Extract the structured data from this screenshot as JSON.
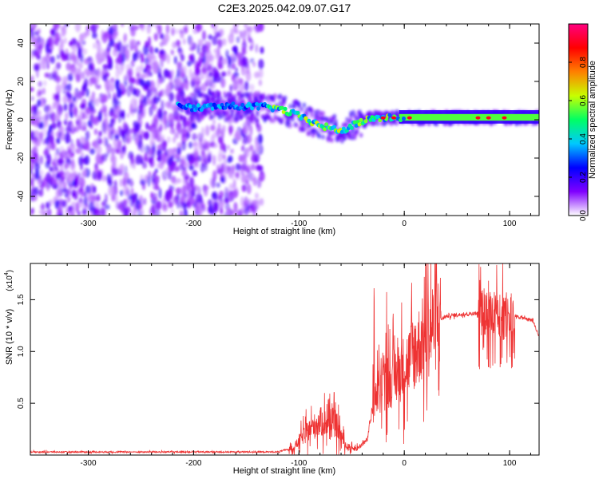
{
  "figure": {
    "title": "C2E3.2025.042.09.07.G17"
  },
  "chart_data": [
    {
      "type": "heatmap",
      "xlabel": "Height of straight line (km)",
      "ylabel": "Frequency (Hz)",
      "xlim": [
        -355,
        128
      ],
      "ylim": [
        -50,
        50
      ],
      "xticks": [
        -300,
        -200,
        -100,
        0,
        100
      ],
      "yticks": [
        -40,
        -20,
        0,
        20,
        40
      ],
      "colorbar": {
        "label": "Normalized spectral amplitude",
        "range": [
          0,
          1
        ],
        "ticks": [
          "0.0",
          "0.2",
          "0.4",
          "0.6",
          "0.8"
        ],
        "colors": [
          "#ffffff",
          "#8000ff",
          "#0000ff",
          "#00c8ff",
          "#00ff64",
          "#c8ff00",
          "#ff8000",
          "#ff0000",
          "#ff0080"
        ]
      },
      "ridge": [
        {
          "x": -215,
          "y": 8
        },
        {
          "x": -200,
          "y": 6
        },
        {
          "x": -180,
          "y": 7
        },
        {
          "x": -140,
          "y": 7
        },
        {
          "x": -120,
          "y": 6
        },
        {
          "x": -100,
          "y": 2
        },
        {
          "x": -80,
          "y": -3
        },
        {
          "x": -60,
          "y": -6
        },
        {
          "x": -45,
          "y": -2
        },
        {
          "x": -30,
          "y": 1
        },
        {
          "x": -10,
          "y": 1
        },
        {
          "x": 20,
          "y": 1
        },
        {
          "x": 60,
          "y": 1
        },
        {
          "x": 128,
          "y": 1
        }
      ],
      "grid": false
    },
    {
      "type": "line",
      "xlabel": "Height of straight line (km)",
      "ylabel": "SNR (10 * v/v)",
      "scale_label": "(x10",
      "scale_exp": "4",
      "xlim": [
        -355,
        128
      ],
      "ylim": [
        0,
        18500
      ],
      "xticks": [
        -300,
        -200,
        -100,
        0,
        100
      ],
      "yticks": [
        "0.5",
        "1.0",
        "1.5"
      ],
      "ytick_values": [
        5000,
        10000,
        15000
      ],
      "color": "#ee3333",
      "envelope": [
        {
          "x": -355,
          "y": 300
        },
        {
          "x": -120,
          "y": 300
        },
        {
          "x": -105,
          "y": 700
        },
        {
          "x": -95,
          "y": 2000
        },
        {
          "x": -80,
          "y": 3200
        },
        {
          "x": -65,
          "y": 3000
        },
        {
          "x": -55,
          "y": 800
        },
        {
          "x": -45,
          "y": 600
        },
        {
          "x": -35,
          "y": 1500
        },
        {
          "x": -28,
          "y": 6000
        },
        {
          "x": -20,
          "y": 6500
        },
        {
          "x": -10,
          "y": 7500
        },
        {
          "x": 0,
          "y": 8500
        },
        {
          "x": 10,
          "y": 10000
        },
        {
          "x": 20,
          "y": 11500
        },
        {
          "x": 30,
          "y": 12800
        },
        {
          "x": 40,
          "y": 13400
        },
        {
          "x": 55,
          "y": 13600
        },
        {
          "x": 75,
          "y": 13700
        },
        {
          "x": 95,
          "y": 13600
        },
        {
          "x": 110,
          "y": 13300
        },
        {
          "x": 122,
          "y": 13000
        },
        {
          "x": 128,
          "y": 11400
        }
      ],
      "grid": false
    }
  ]
}
